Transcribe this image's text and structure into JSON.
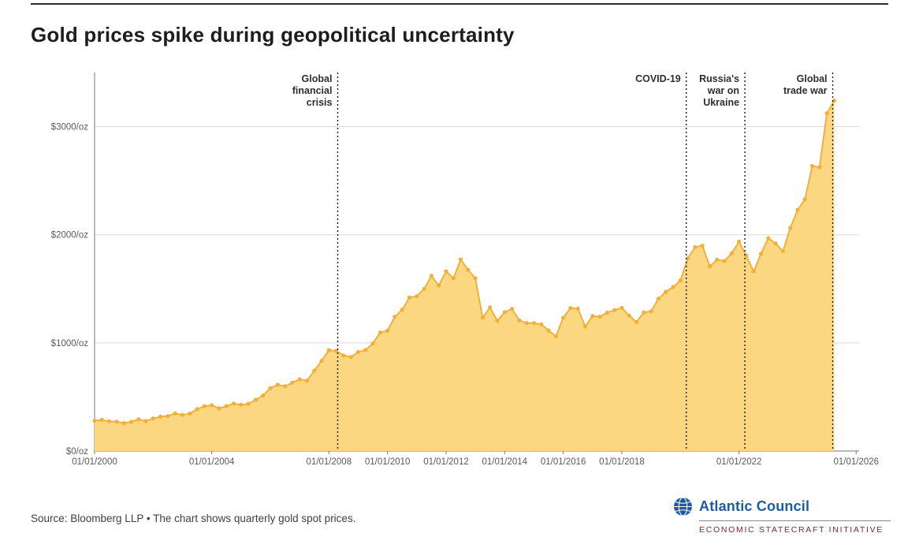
{
  "page": {
    "title": "Gold prices spike during geopolitical uncertainty",
    "source_note": "Source: Bloomberg LLP • The chart shows quarterly gold spot prices.",
    "logo": {
      "name": "Atlantic Council",
      "subtitle": "ECONOMIC STATECRAFT INITIATIVE",
      "brand_blue": "#1d5ba5",
      "brand_maroon": "#8e2134"
    }
  },
  "chart_data": {
    "type": "area",
    "title": "Gold prices spike during geopolitical uncertainty",
    "xlabel": "",
    "ylabel": "$/oz",
    "legend": "none",
    "grid": true,
    "x_domain": [
      2000,
      2026.1
    ],
    "ylim": [
      0,
      3500
    ],
    "x_start_year": 2000,
    "x_step_years": 0.25,
    "y_ticks": [
      {
        "value": 0,
        "label": "$0/oz"
      },
      {
        "value": 1000,
        "label": "$1000/oz"
      },
      {
        "value": 2000,
        "label": "$2000/oz"
      },
      {
        "value": 3000,
        "label": "$3000/oz"
      }
    ],
    "x_ticks": [
      {
        "year": 2000,
        "label": "01/01/2000"
      },
      {
        "year": 2004,
        "label": "01/01/2004"
      },
      {
        "year": 2008,
        "label": "01/01/2008"
      },
      {
        "year": 2010,
        "label": "01/01/2010"
      },
      {
        "year": 2012,
        "label": "01/01/2012"
      },
      {
        "year": 2014,
        "label": "01/01/2014"
      },
      {
        "year": 2016,
        "label": "01/01/2016"
      },
      {
        "year": 2018,
        "label": "01/01/2018"
      },
      {
        "year": 2022,
        "label": "01/01/2022"
      },
      {
        "year": 2026,
        "label": "01/01/2026"
      }
    ],
    "events": [
      {
        "year": 2008.3,
        "label": "Global financial crisis",
        "label_lines": [
          "Global",
          "financial",
          "crisis"
        ]
      },
      {
        "year": 2020.2,
        "label": "COVID-19",
        "label_lines": [
          "COVID-19"
        ]
      },
      {
        "year": 2022.2,
        "label": "Russia's war on Ukraine",
        "label_lines": [
          "Russia's",
          "war on",
          "Ukraine"
        ]
      },
      {
        "year": 2025.2,
        "label": "Global trade war",
        "label_lines": [
          "Global",
          "trade war"
        ]
      }
    ],
    "series": [
      {
        "name": "Quarterly gold spot price ($/oz)",
        "values": [
          279,
          288,
          274,
          272,
          258,
          270,
          293,
          277,
          301,
          318,
          323,
          347,
          334,
          346,
          388,
          415,
          423,
          395,
          415,
          438,
          428,
          437,
          473,
          513,
          582,
          613,
          599,
          632,
          663,
          650,
          743,
          834,
          933,
          926,
          884,
          869,
          916,
          934,
          995,
          1096,
          1113,
          1242,
          1307,
          1420,
          1431,
          1500,
          1620,
          1531,
          1662,
          1598,
          1772,
          1675,
          1598,
          1234,
          1328,
          1205,
          1283,
          1315,
          1208,
          1184,
          1183,
          1172,
          1115,
          1061,
          1232,
          1322,
          1316,
          1152,
          1249,
          1242,
          1280,
          1303,
          1325,
          1253,
          1192,
          1282,
          1292,
          1409,
          1472,
          1517,
          1577,
          1781,
          1886,
          1898,
          1708,
          1770,
          1757,
          1829,
          1937,
          1807,
          1661,
          1824,
          1969,
          1919,
          1849,
          2063,
          2230,
          2327,
          2635,
          2625,
          3124,
          3240
        ]
      }
    ],
    "colors": {
      "fill": "#FCD782",
      "line": "#F1AC33",
      "marker": "#F2AF3B",
      "grid": "#DADADA",
      "axis": "#767676",
      "axis_text": "#595959",
      "event_line": "#1a1a1a",
      "event_text": "#2e2e2e"
    }
  }
}
